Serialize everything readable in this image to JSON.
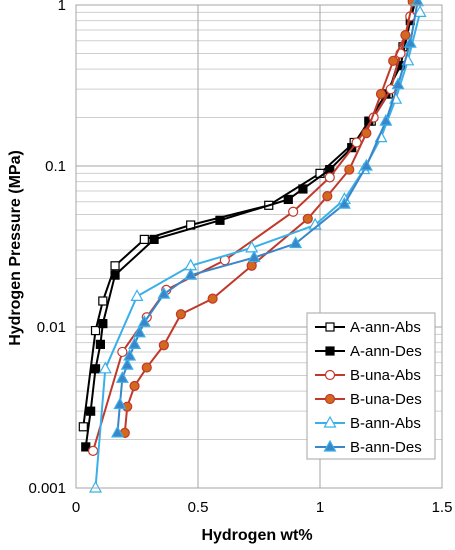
{
  "chart_data": {
    "type": "scatter",
    "title": "",
    "xlabel": "Hydrogen wt%",
    "ylabel": "Hydrogen Pressure  (MPa)",
    "xlim": [
      0,
      1.5
    ],
    "ylim": [
      0.001,
      1
    ],
    "yscale": "log",
    "xticks": [
      0,
      0.5,
      1,
      1.5
    ],
    "xtick_labels": [
      "0",
      "0.5",
      "1",
      "1.5"
    ],
    "yticks": [
      0.001,
      0.01,
      0.1,
      1
    ],
    "ytick_labels": [
      "0.001",
      "0.01",
      "0.1",
      "1"
    ],
    "grid": true,
    "legend_position": "bottom-right",
    "series": [
      {
        "name": "A-ann-Abs",
        "color": "#000000",
        "marker": "square",
        "filled": false,
        "x": [
          0.03,
          0.08,
          0.11,
          0.16,
          0.28,
          0.47,
          0.79,
          1.0,
          1.14,
          1.21,
          1.28,
          1.34,
          1.39
        ],
        "y": [
          0.0024,
          0.0095,
          0.0145,
          0.024,
          0.035,
          0.043,
          0.057,
          0.09,
          0.14,
          0.19,
          0.28,
          0.55,
          1.1
        ]
      },
      {
        "name": "A-ann-Des",
        "color": "#000000",
        "marker": "square",
        "filled": true,
        "x": [
          0.04,
          0.06,
          0.08,
          0.1,
          0.11,
          0.16,
          0.32,
          0.59,
          0.87,
          0.93,
          1.04,
          1.13,
          1.2,
          1.27,
          1.33,
          1.37,
          1.4
        ],
        "y": [
          0.0018,
          0.003,
          0.0055,
          0.0078,
          0.0105,
          0.021,
          0.035,
          0.046,
          0.062,
          0.072,
          0.095,
          0.13,
          0.19,
          0.28,
          0.42,
          0.8,
          1.2
        ]
      },
      {
        "name": "B-una-Abs",
        "color": "#c0392b",
        "marker": "circle",
        "filled": false,
        "x": [
          0.07,
          0.19,
          0.29,
          0.37,
          0.61,
          0.89,
          1.04,
          1.15,
          1.22,
          1.29,
          1.33,
          1.37
        ],
        "y": [
          0.0017,
          0.007,
          0.0115,
          0.017,
          0.026,
          0.052,
          0.085,
          0.14,
          0.2,
          0.3,
          0.5,
          0.85
        ]
      },
      {
        "name": "B-una-Des",
        "color": "#c0392b",
        "marker": "circle",
        "filled": true,
        "x": [
          0.2,
          0.21,
          0.24,
          0.29,
          0.36,
          0.43,
          0.56,
          0.72,
          0.95,
          1.03,
          1.12,
          1.19,
          1.25,
          1.3,
          1.35,
          1.38
        ],
        "y": [
          0.0022,
          0.0032,
          0.0043,
          0.0056,
          0.0077,
          0.012,
          0.015,
          0.024,
          0.047,
          0.065,
          0.095,
          0.16,
          0.28,
          0.45,
          0.65,
          1.05
        ]
      },
      {
        "name": "B-ann-Abs",
        "color": "#3ab0e8",
        "marker": "triangle",
        "filled": false,
        "x": [
          0.08,
          0.12,
          0.25,
          0.47,
          0.72,
          0.98,
          1.1,
          1.18,
          1.25,
          1.31,
          1.36,
          1.41
        ],
        "y": [
          0.001,
          0.0055,
          0.0155,
          0.024,
          0.031,
          0.043,
          0.062,
          0.095,
          0.15,
          0.26,
          0.45,
          0.9
        ]
      },
      {
        "name": "B-ann-Des",
        "color": "#3a86c8",
        "marker": "triangle",
        "filled": true,
        "x": [
          0.17,
          0.18,
          0.19,
          0.21,
          0.22,
          0.24,
          0.26,
          0.28,
          0.36,
          0.47,
          0.73,
          0.9,
          1.1,
          1.19,
          1.27,
          1.32,
          1.37,
          1.4
        ],
        "y": [
          0.0022,
          0.0033,
          0.0048,
          0.0058,
          0.0066,
          0.0078,
          0.0092,
          0.0107,
          0.016,
          0.021,
          0.027,
          0.033,
          0.058,
          0.1,
          0.19,
          0.32,
          0.58,
          1.05
        ]
      }
    ]
  }
}
